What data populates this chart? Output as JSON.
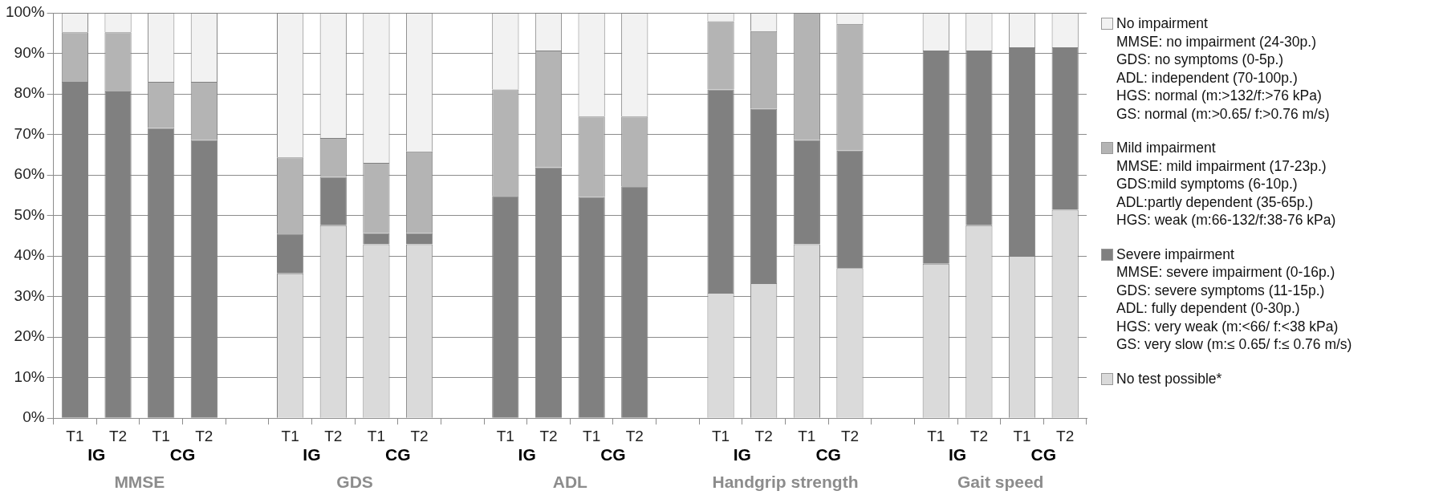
{
  "chart_data": {
    "type": "bar",
    "stacked": true,
    "categories": [
      "T1",
      "T2",
      "T1",
      "T2",
      null,
      "T1",
      "T2",
      "T1",
      "T2",
      null,
      "T1",
      "T2",
      "T1",
      "T2",
      null,
      "T1",
      "T2",
      "T1",
      "T2",
      null,
      "T1",
      "T2",
      "T1",
      "T2"
    ],
    "annotations": [
      "IG",
      "CG",
      "MMSE",
      "IG",
      "CG",
      "GDS",
      "IG",
      "CG",
      "ADL",
      "IG",
      "CG",
      "Handgrip strength",
      "IG",
      "CG",
      "Gait speed"
    ],
    "series": [
      {
        "name": "No test possible*",
        "color": "#dadada",
        "values": [
          0,
          0,
          0,
          0,
          null,
          35.7,
          47.6,
          42.9,
          42.9,
          null,
          0,
          0,
          0,
          0,
          null,
          30.9,
          33.3,
          42.9,
          37.0,
          null,
          38.1,
          47.6,
          40.0,
          51.4
        ]
      },
      {
        "name": "Severe impairment\nMMSE: severe impairment  (0-16p.)\nGDS: severe symptoms  (11-15p.)\nADL: fully dependent (0-30p.)\nHGS: very weak (m:<66/ f:<38 kPa)\nGS: very slow (m:≤ 0.65/ f:≤ 0.76 m/s)",
        "color": "#808080",
        "values": [
          83.0,
          80.6,
          71.6,
          68.6,
          null,
          9.8,
          11.9,
          2.7,
          2.7,
          null,
          54.8,
          61.9,
          54.5,
          57.2,
          null,
          50.2,
          43.0,
          25.7,
          29.0,
          null,
          52.6,
          43.1,
          51.5,
          40.1
        ]
      },
      {
        "name": "Mild impairment\nMMSE: mild impairment (17-23p.)\nGDS:mild symptoms (6-10p.)\nADL:partly dependent (35-65p.)\nHGS: weak (m:66-132/f:38-76 kPa)",
        "color": "#b4b4b4",
        "values": [
          12.2,
          14.6,
          11.4,
          14.4,
          null,
          18.8,
          9.6,
          17.4,
          20.2,
          null,
          26.3,
          28.8,
          19.9,
          17.2,
          null,
          16.8,
          19.2,
          31.4,
          31.3,
          null,
          0,
          0,
          0,
          0
        ]
      },
      {
        "name": "No impairment\nMMSE: no impairment (24-30p.)\nGDS: no symptoms (0-5p.)\nADL: independent (70-100p.)\nHGS: normal (m:>132/f:>76 kPa)\nGS: normal (m:>0.65/ f:>0.76 m/s)",
        "color": "#f2f2f2",
        "values": [
          4.8,
          4.8,
          17.0,
          17.0,
          null,
          35.7,
          30.9,
          37.0,
          34.2,
          null,
          18.9,
          9.3,
          25.6,
          25.6,
          null,
          2.1,
          4.5,
          0,
          2.7,
          null,
          9.3,
          9.3,
          8.5,
          8.5
        ]
      }
    ],
    "ylim": [
      0,
      100
    ],
    "yticks": [
      {
        "value": 0,
        "label": "0%"
      },
      {
        "value": 10,
        "label": "10%"
      },
      {
        "value": 20,
        "label": "20%"
      },
      {
        "value": 30,
        "label": "30%"
      },
      {
        "value": 40,
        "label": "40%"
      },
      {
        "value": 50,
        "label": "50%"
      },
      {
        "value": 60,
        "label": "60%"
      },
      {
        "value": 70,
        "label": "70%"
      },
      {
        "value": 80,
        "label": "80%"
      },
      {
        "value": 90,
        "label": "90%"
      },
      {
        "value": 100,
        "label": "100%"
      }
    ],
    "grid": "y",
    "legend": "right"
  }
}
